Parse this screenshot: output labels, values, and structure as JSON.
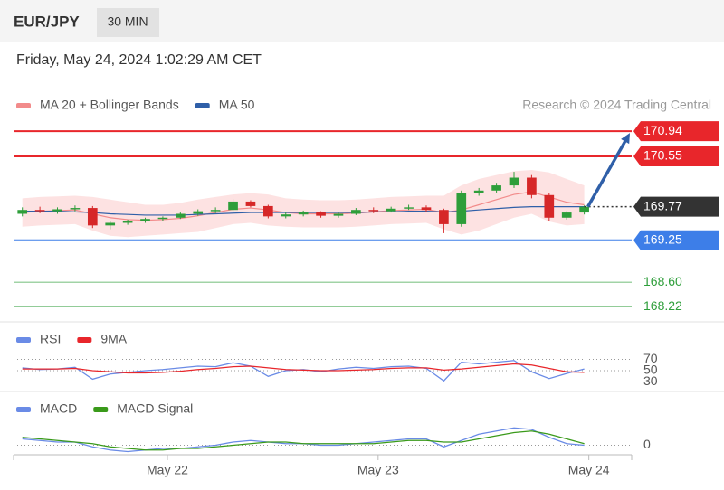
{
  "header": {
    "symbol": "EUR/JPY",
    "interval": "30 MIN",
    "datetime": "Friday, May 24, 2024 1:02:29 AM CET"
  },
  "chart_data": [
    {
      "type": "candlestick",
      "source": "Research © 2024 Trading Central",
      "xlim": [
        0,
        35.2
      ],
      "ylim": [
        168.0,
        171.6
      ],
      "x": [
        0.5,
        1.5,
        2.5,
        3.5,
        4.5,
        5.5,
        6.5,
        7.5,
        8.5,
        9.5,
        10.5,
        11.5,
        12.5,
        13.5,
        14.5,
        15.5,
        16.5,
        17.5,
        18.5,
        19.5,
        20.5,
        21.5,
        22.5,
        23.5,
        24.5,
        25.5,
        26.5,
        27.5,
        28.5,
        29.5,
        30.5,
        31.5,
        32.5
      ],
      "open": [
        169.66,
        169.72,
        169.7,
        169.73,
        169.75,
        169.48,
        169.52,
        169.55,
        169.58,
        169.6,
        169.66,
        169.7,
        169.72,
        169.85,
        169.78,
        169.62,
        169.65,
        169.68,
        169.63,
        169.66,
        169.72,
        169.7,
        169.74,
        169.76,
        169.72,
        169.5,
        169.98,
        170.02,
        170.1,
        170.22,
        169.95,
        169.6,
        169.68
      ],
      "high": [
        169.76,
        169.77,
        169.76,
        169.79,
        169.78,
        169.54,
        169.57,
        169.6,
        169.62,
        169.68,
        169.73,
        169.76,
        169.89,
        169.87,
        169.8,
        169.68,
        169.71,
        169.7,
        169.68,
        169.75,
        169.76,
        169.77,
        169.8,
        169.79,
        169.74,
        170.02,
        170.06,
        170.14,
        170.31,
        170.26,
        169.98,
        169.7,
        169.79
      ],
      "low": [
        169.62,
        169.67,
        169.66,
        169.7,
        169.44,
        169.42,
        169.49,
        169.52,
        169.55,
        169.58,
        169.63,
        169.67,
        169.7,
        169.76,
        169.59,
        169.59,
        169.62,
        169.6,
        169.6,
        169.64,
        169.67,
        169.68,
        169.72,
        169.69,
        169.36,
        169.46,
        169.94,
        169.99,
        170.06,
        169.9,
        169.55,
        169.57,
        169.65
      ],
      "close": [
        169.72,
        169.7,
        169.73,
        169.75,
        169.48,
        169.52,
        169.55,
        169.58,
        169.6,
        169.66,
        169.7,
        169.72,
        169.85,
        169.78,
        169.62,
        169.65,
        169.68,
        169.63,
        169.66,
        169.72,
        169.7,
        169.74,
        169.76,
        169.72,
        169.5,
        169.98,
        170.02,
        170.1,
        170.22,
        169.95,
        169.6,
        169.68,
        169.77
      ],
      "up_color": "#2e9e3a",
      "down_color": "#d62728",
      "series": [
        {
          "name": "MA 20 + Bollinger Bands",
          "color": "#f28b8b",
          "band_color": "#fde2e2",
          "values": [
            169.68,
            169.7,
            169.71,
            169.72,
            169.66,
            169.6,
            169.57,
            169.56,
            169.57,
            169.59,
            169.63,
            169.68,
            169.73,
            169.75,
            169.72,
            169.68,
            169.66,
            169.66,
            169.66,
            169.67,
            169.69,
            169.71,
            169.72,
            169.73,
            169.68,
            169.72,
            169.8,
            169.88,
            169.96,
            170.0,
            169.92,
            169.84,
            169.8
          ],
          "upper": [
            169.9,
            169.92,
            169.93,
            169.94,
            169.92,
            169.88,
            169.84,
            169.8,
            169.8,
            169.83,
            169.88,
            169.92,
            169.96,
            169.98,
            169.96,
            169.9,
            169.88,
            169.87,
            169.87,
            169.88,
            169.9,
            169.92,
            169.93,
            169.94,
            169.94,
            170.1,
            170.2,
            170.26,
            170.32,
            170.34,
            170.3,
            170.2,
            170.1
          ],
          "lower": [
            169.46,
            169.48,
            169.49,
            169.5,
            169.4,
            169.32,
            169.3,
            169.32,
            169.34,
            169.36,
            169.38,
            169.44,
            169.5,
            169.52,
            169.48,
            169.46,
            169.45,
            169.45,
            169.45,
            169.46,
            169.48,
            169.5,
            169.51,
            169.52,
            169.42,
            169.34,
            169.4,
            169.5,
            169.6,
            169.66,
            169.54,
            169.48,
            169.5
          ]
        },
        {
          "name": "MA 50",
          "color": "#2f5fa8",
          "values": [
            169.7,
            169.7,
            169.7,
            169.69,
            169.68,
            169.66,
            169.65,
            169.64,
            169.64,
            169.64,
            169.65,
            169.66,
            169.67,
            169.68,
            169.68,
            169.68,
            169.68,
            169.68,
            169.68,
            169.68,
            169.69,
            169.69,
            169.7,
            169.7,
            169.69,
            169.7,
            169.72,
            169.74,
            169.76,
            169.77,
            169.77,
            169.77,
            169.77
          ]
        }
      ],
      "levels": [
        {
          "value": 170.94,
          "color": "#e8262b",
          "style": "filled"
        },
        {
          "value": 170.55,
          "color": "#e8262b",
          "style": "filled"
        },
        {
          "value": 169.77,
          "color": "#333333",
          "style": "current"
        },
        {
          "value": 169.25,
          "color": "#3d7ee8",
          "style": "filled"
        },
        {
          "value": 168.6,
          "label": "168.60",
          "color": "#2e9e3a",
          "style": "plain"
        },
        {
          "value": 168.22,
          "color": "#2e9e3a",
          "style": "plain"
        }
      ],
      "target_color": "#2f5fa8"
    },
    {
      "type": "line",
      "xlim": [
        0,
        35.2
      ],
      "ylim": [
        18,
        82
      ],
      "x": [
        0.5,
        1.5,
        2.5,
        3.5,
        4.5,
        5.5,
        6.5,
        7.5,
        8.5,
        9.5,
        10.5,
        11.5,
        12.5,
        13.5,
        14.5,
        15.5,
        16.5,
        17.5,
        18.5,
        19.5,
        20.5,
        21.5,
        22.5,
        23.5,
        24.5,
        25.5,
        26.5,
        27.5,
        28.5,
        29.5,
        30.5,
        31.5,
        32.5
      ],
      "yticks": [
        70,
        50,
        30
      ],
      "series": [
        {
          "name": "RSI",
          "color": "#6a8be6",
          "values": [
            55,
            52,
            53,
            56,
            35,
            44,
            47,
            50,
            52,
            55,
            58,
            57,
            64,
            58,
            40,
            50,
            52,
            48,
            53,
            56,
            54,
            57,
            58,
            54,
            32,
            65,
            62,
            65,
            68,
            48,
            36,
            45,
            53
          ]
        },
        {
          "name": "9MA",
          "color": "#e8262b",
          "values": [
            53,
            53,
            53,
            54,
            50,
            48,
            46,
            46,
            47,
            49,
            52,
            54,
            57,
            58,
            55,
            52,
            51,
            50,
            50,
            51,
            52,
            54,
            55,
            55,
            51,
            53,
            56,
            59,
            62,
            60,
            54,
            48,
            47
          ]
        }
      ]
    },
    {
      "type": "line",
      "xlim": [
        0,
        35.2
      ],
      "ylim": [
        -0.06,
        0.3
      ],
      "x": [
        0.5,
        1.5,
        2.5,
        3.5,
        4.5,
        5.5,
        6.5,
        7.5,
        8.5,
        9.5,
        10.5,
        11.5,
        12.5,
        13.5,
        14.5,
        15.5,
        16.5,
        17.5,
        18.5,
        19.5,
        20.5,
        21.5,
        22.5,
        23.5,
        24.5,
        25.5,
        26.5,
        27.5,
        28.5,
        29.5,
        30.5,
        31.5,
        32.5
      ],
      "yticks": [
        0
      ],
      "xticks": [
        {
          "value": 8.76,
          "label": "May 22"
        },
        {
          "value": 20.76,
          "label": "May 23"
        },
        {
          "value": 32.76,
          "label": "May 24"
        }
      ],
      "series": [
        {
          "name": "MACD",
          "color": "#6a8be6",
          "values": [
            0.04,
            0.03,
            0.02,
            0.02,
            -0.01,
            -0.03,
            -0.04,
            -0.03,
            -0.02,
            -0.02,
            -0.01,
            0.0,
            0.02,
            0.03,
            0.02,
            0.01,
            0.01,
            0.0,
            0.0,
            0.01,
            0.02,
            0.03,
            0.04,
            0.04,
            -0.01,
            0.03,
            0.07,
            0.09,
            0.11,
            0.1,
            0.05,
            0.01,
            0.0
          ]
        },
        {
          "name": "MACD Signal",
          "color": "#3a9a1a",
          "values": [
            0.05,
            0.04,
            0.03,
            0.02,
            0.01,
            -0.01,
            -0.02,
            -0.03,
            -0.03,
            -0.02,
            -0.02,
            -0.01,
            0.0,
            0.01,
            0.02,
            0.02,
            0.01,
            0.01,
            0.01,
            0.01,
            0.01,
            0.02,
            0.03,
            0.03,
            0.02,
            0.02,
            0.04,
            0.06,
            0.08,
            0.09,
            0.07,
            0.04,
            0.01
          ]
        }
      ]
    }
  ]
}
